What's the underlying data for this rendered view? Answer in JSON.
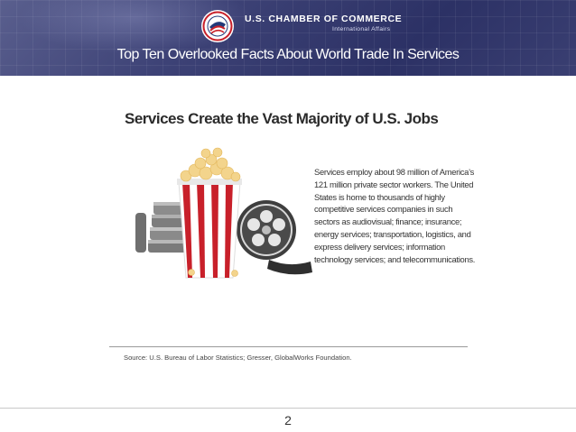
{
  "header": {
    "org_name": "U.S. CHAMBER OF COMMERCE",
    "org_sub": "International Affairs",
    "title": "Top Ten Overlooked Facts About World Trade In Services"
  },
  "colors": {
    "header_bg": "#3d4276",
    "heading_text": "#2b2b2b",
    "popcorn_stripe_red": "#c8202a",
    "emblem_red": "#c8202a",
    "emblem_blue": "#233a7a"
  },
  "slide": {
    "heading": "Services Create the Vast Majority of U.S. Jobs",
    "body": "Services employ about 98 million of America’s 121 million private sector workers. The United States is home to thousands of highly competitive services companies in such sectors as audiovisual; finance; insurance; energy services; transportation, logistics, and express delivery services; information technology services; and telecommunications.",
    "source": "Source: U.S. Bureau of Labor Statistics; Gresser, GlobalWorks Foundation."
  },
  "icons": [
    "chamber-emblem-icon",
    "popcorn-bucket-icon",
    "film-reel-icon",
    "film-canisters-icon"
  ],
  "footer": {
    "page_number": "2"
  }
}
